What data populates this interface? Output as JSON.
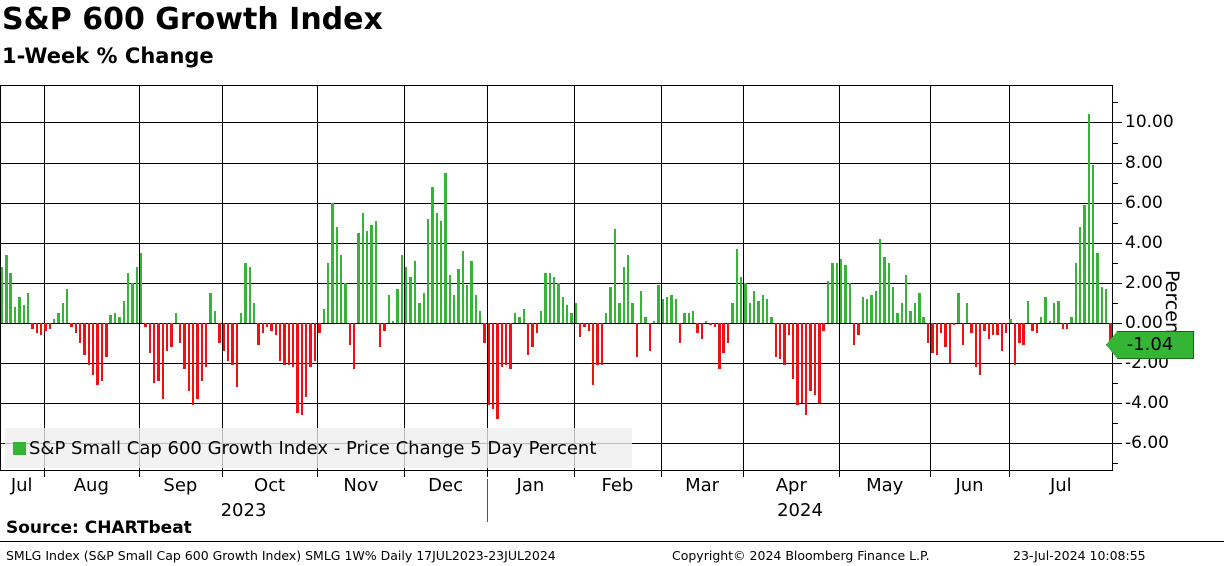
{
  "header": {
    "title": "S&P 600 Growth Index",
    "subtitle": "1-Week % Change"
  },
  "legend": {
    "label": "S&P Small Cap 600 Growth Index - Price Change 5 Day Percent"
  },
  "axis": {
    "y_axis_title": "Percent",
    "last_value_tag": "-1.04"
  },
  "footer": {
    "source": "Source: CHARTbeat",
    "info": "SMLG Index (S&P Small Cap 600 Growth Index) SMLG 1W%  Daily 17JUL2023-23JUL2024",
    "copyright": "Copyright© 2024 Bloomberg Finance L.P.",
    "timestamp": "23-Jul-2024 10:08:55"
  },
  "chart_data": {
    "type": "bar",
    "title": "S&P 600 Growth Index",
    "subtitle": "1-Week % Change",
    "series_name": "S&P Small Cap 600 Growth Index - Price Change 5 Day Percent",
    "ylabel": "Percent",
    "y_ticks": [
      10,
      8,
      6,
      4,
      2,
      0,
      -2,
      -4,
      -6
    ],
    "y_minor_ticks": [
      11,
      9,
      7,
      5,
      3,
      1,
      -1,
      -3,
      -5,
      -7
    ],
    "ylim": [
      -7.3,
      11.9
    ],
    "grid": true,
    "legend_position": "bottom-left",
    "positive_color": "#35b535",
    "negative_color": "#ed1111",
    "date_range": "17JUL2023-23JUL2024",
    "last_value": -1.04,
    "x_months": [
      "Jul",
      "Aug",
      "Sep",
      "Oct",
      "Nov",
      "Dec",
      "Jan",
      "Feb",
      "Mar",
      "Apr",
      "May",
      "Jun",
      "Jul"
    ],
    "year_labels": [
      "2023",
      "2024"
    ],
    "bars_per_month": [
      10,
      22,
      19,
      22,
      20,
      19,
      20,
      20,
      19,
      22,
      21,
      18,
      24
    ],
    "values": [
      2.8,
      3.4,
      2.5,
      0.8,
      1.3,
      0.9,
      1.5,
      -0.3,
      -0.5,
      -0.6,
      -0.4,
      -0.3,
      0.2,
      0.5,
      1.0,
      1.7,
      -0.2,
      -0.5,
      -1.0,
      -1.6,
      -2.1,
      -2.6,
      -3.1,
      -2.9,
      -1.7,
      0.4,
      0.5,
      0.3,
      1.1,
      2.5,
      2.0,
      2.8,
      3.5,
      -0.2,
      -1.5,
      -3.0,
      -2.9,
      -3.8,
      -1.4,
      -1.2,
      0.5,
      -1.0,
      -2.3,
      -3.4,
      -4.1,
      -3.8,
      -2.9,
      -2.2,
      1.5,
      0.6,
      -1.0,
      -1.4,
      -1.9,
      -2.1,
      -3.2,
      0.5,
      3.0,
      2.8,
      1.0,
      -1.1,
      -0.5,
      -0.2,
      -0.4,
      -0.6,
      -1.9,
      -2.1,
      -2.1,
      -2.2,
      -4.5,
      -4.6,
      -3.7,
      -2.2,
      -1.9,
      -0.5,
      0.7,
      3.0,
      6.0,
      4.8,
      3.4,
      2.0,
      -1.1,
      -2.3,
      4.5,
      5.5,
      4.6,
      4.9,
      5.1,
      -1.2,
      -0.4,
      1.4,
      0.1,
      1.7,
      3.4,
      2.8,
      2.3,
      3.1,
      1.0,
      1.5,
      5.2,
      6.8,
      5.5,
      5.1,
      7.5,
      2.4,
      1.4,
      2.7,
      3.6,
      1.9,
      3.1,
      1.4,
      0.6,
      -1.0,
      -4.1,
      -4.3,
      -4.8,
      -2.2,
      -2.1,
      -2.3,
      0.5,
      0.3,
      0.7,
      -1.6,
      -1.2,
      -0.5,
      0.6,
      2.5,
      2.5,
      2.3,
      2.0,
      1.3,
      0.9,
      0.5,
      1.0,
      -0.7,
      -0.2,
      -0.4,
      -3.1,
      -2.1,
      -2.1,
      0.5,
      1.8,
      4.7,
      1.0,
      2.8,
      3.4,
      1.0,
      -1.7,
      1.6,
      0.3,
      -1.4,
      0.1,
      1.9,
      1.2,
      1.3,
      1.4,
      1.2,
      -1.0,
      0.5,
      0.5,
      0.6,
      -0.5,
      -0.8,
      0.1,
      -0.1,
      -0.2,
      -2.3,
      -1.5,
      -1.0,
      1.0,
      3.7,
      2.3,
      2.0,
      1.0,
      1.6,
      1.1,
      1.4,
      1.2,
      0.3,
      -1.7,
      -1.8,
      -2.1,
      -0.6,
      -2.8,
      -4.1,
      -4.0,
      -4.6,
      -3.4,
      -3.6,
      -4.0,
      -0.4,
      2.1,
      3.0,
      3.0,
      3.2,
      2.9,
      2.0,
      -1.1,
      -0.6,
      1.3,
      1.2,
      1.4,
      1.6,
      4.2,
      3.3,
      3.0,
      1.8,
      0.5,
      1.0,
      2.4,
      0.6,
      1.0,
      1.5,
      0.3,
      -1.0,
      -1.5,
      -1.6,
      -0.5,
      -1.2,
      -2.0,
      -0.1,
      1.5,
      -1.1,
      1.0,
      -0.5,
      -2.2,
      -2.6,
      -0.4,
      -0.8,
      -0.6,
      -0.6,
      -1.4,
      -0.5,
      0.2,
      -2.1,
      -1.0,
      -1.1,
      1.1,
      -0.4,
      -0.5,
      0.3,
      1.3,
      0.1,
      1.0,
      1.1,
      -0.3,
      -0.3,
      0.3,
      3.0,
      4.8,
      5.9,
      10.4,
      7.9,
      3.5,
      1.8,
      1.7,
      -1.04
    ]
  }
}
